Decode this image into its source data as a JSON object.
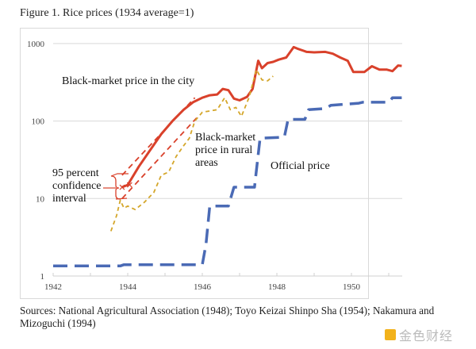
{
  "figure": {
    "title": "Figure 1. Rice prices (1934 average=1)",
    "sources": "Sources: National Agricultural Association (1948); Toyo Keizai Shinpo Sha (1954); Nakamura and Mizoguchi (1994)",
    "watermark": "金色财经"
  },
  "chart_data": {
    "type": "line",
    "title": "Rice prices (1934 average=1)",
    "xlabel": "",
    "ylabel": "",
    "yscale": "log",
    "xlim": [
      1942,
      1951.4
    ],
    "ylim": [
      1,
      1000
    ],
    "x_ticks": [
      "1942",
      "1944",
      "1946",
      "1948",
      "1950"
    ],
    "y_ticks": [
      "1",
      "10",
      "100",
      "1000"
    ],
    "grid": "horizontal",
    "colors": {
      "city": "#d9412b",
      "rural": "#d4a62a",
      "official": "#4a6ab5",
      "grid": "#d9d9d9"
    },
    "series": [
      {
        "name": "Black-market price in the city",
        "style": "solid",
        "points": [
          [
            1943.85,
            14
          ],
          [
            1944.0,
            15
          ],
          [
            1944.3,
            26
          ],
          [
            1944.6,
            42
          ],
          [
            1944.9,
            68
          ],
          [
            1945.2,
            100
          ],
          [
            1945.5,
            140
          ],
          [
            1945.75,
            175
          ],
          [
            1946.0,
            200
          ],
          [
            1946.2,
            215
          ],
          [
            1946.4,
            220
          ],
          [
            1946.55,
            260
          ],
          [
            1946.7,
            250
          ],
          [
            1946.85,
            195
          ],
          [
            1947.0,
            185
          ],
          [
            1947.2,
            205
          ],
          [
            1947.35,
            260
          ],
          [
            1947.5,
            600
          ],
          [
            1947.6,
            480
          ],
          [
            1947.75,
            560
          ],
          [
            1947.9,
            580
          ],
          [
            1948.05,
            620
          ],
          [
            1948.25,
            660
          ],
          [
            1948.45,
            900
          ],
          [
            1948.55,
            860
          ],
          [
            1948.8,
            780
          ],
          [
            1949.0,
            770
          ],
          [
            1949.3,
            780
          ],
          [
            1949.5,
            740
          ],
          [
            1949.7,
            660
          ],
          [
            1949.9,
            600
          ],
          [
            1950.05,
            430
          ],
          [
            1950.35,
            430
          ],
          [
            1950.55,
            510
          ],
          [
            1950.75,
            460
          ],
          [
            1950.95,
            460
          ],
          [
            1951.1,
            440
          ],
          [
            1951.25,
            520
          ],
          [
            1951.35,
            515
          ]
        ]
      },
      {
        "name": "Black-market price in rural areas",
        "style": "dashed",
        "points": [
          [
            1943.55,
            3.8
          ],
          [
            1943.7,
            6
          ],
          [
            1943.8,
            9.5
          ],
          [
            1943.9,
            7.5
          ],
          [
            1944.0,
            8
          ],
          [
            1944.2,
            7.2
          ],
          [
            1944.45,
            9
          ],
          [
            1944.7,
            12
          ],
          [
            1944.9,
            20
          ],
          [
            1945.1,
            22
          ],
          [
            1945.3,
            35
          ],
          [
            1945.5,
            48
          ],
          [
            1945.65,
            60
          ],
          [
            1945.8,
            100
          ],
          [
            1946.0,
            130
          ],
          [
            1946.2,
            135
          ],
          [
            1946.4,
            140
          ],
          [
            1946.6,
            200
          ],
          [
            1946.75,
            140
          ],
          [
            1946.9,
            150
          ],
          [
            1947.05,
            115
          ],
          [
            1947.25,
            200
          ],
          [
            1947.45,
            460
          ],
          [
            1947.6,
            340
          ],
          [
            1947.75,
            330
          ],
          [
            1947.9,
            380
          ]
        ]
      },
      {
        "name": "Official price",
        "style": "long-dash",
        "points": [
          [
            1942.0,
            1.35
          ],
          [
            1943.8,
            1.35
          ],
          [
            1943.9,
            1.4
          ],
          [
            1946.0,
            1.4
          ],
          [
            1946.1,
            2.6
          ],
          [
            1946.2,
            8
          ],
          [
            1946.7,
            8
          ],
          [
            1946.85,
            14
          ],
          [
            1947.4,
            14
          ],
          [
            1947.55,
            60
          ],
          [
            1948.2,
            62
          ],
          [
            1948.3,
            105
          ],
          [
            1948.75,
            105
          ],
          [
            1948.85,
            140
          ],
          [
            1949.3,
            145
          ],
          [
            1949.45,
            160
          ],
          [
            1950.2,
            170
          ],
          [
            1950.3,
            175
          ],
          [
            1951.0,
            175
          ],
          [
            1951.1,
            200
          ],
          [
            1951.35,
            200
          ]
        ]
      }
    ],
    "confidence_band": {
      "name": "95 percent confidence interval",
      "upper": [
        [
          1943.85,
          20
        ],
        [
          1945.8,
          200
        ]
      ],
      "lower": [
        [
          1943.85,
          10
        ],
        [
          1945.85,
          110
        ]
      ]
    },
    "annotations": [
      {
        "text": "Black-market price in the city",
        "anchor": "upper-left"
      },
      {
        "text": "Black-market price in rural areas",
        "anchor": "center"
      },
      {
        "text": "Official price",
        "anchor": "center-right"
      },
      {
        "text": "95 percent confidence interval",
        "anchor": "left"
      }
    ]
  }
}
